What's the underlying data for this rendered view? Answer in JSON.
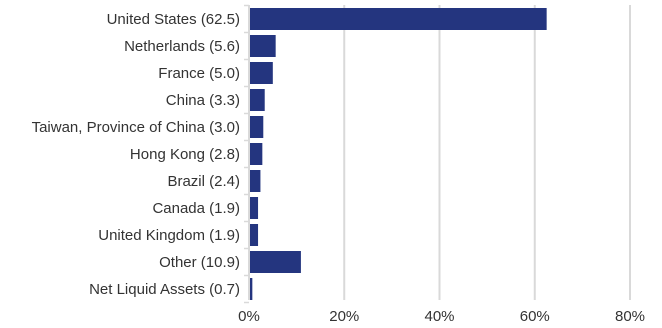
{
  "chart_data": {
    "type": "bar",
    "orientation": "horizontal",
    "categories": [
      "United States (62.5)",
      "Netherlands (5.6)",
      "France (5.0)",
      "China (3.3)",
      "Taiwan, Province of China (3.0)",
      "Hong Kong (2.8)",
      "Brazil (2.4)",
      "Canada (1.9)",
      "United Kingdom (1.9)",
      "Other (10.9)",
      "Net Liquid Assets (0.7)"
    ],
    "values": [
      62.5,
      5.6,
      5.0,
      3.3,
      3.0,
      2.8,
      2.4,
      1.9,
      1.9,
      10.9,
      0.7
    ],
    "x_ticks": [
      0,
      20,
      40,
      60,
      80
    ],
    "x_tick_labels": [
      "0%",
      "20%",
      "40%",
      "60%",
      "80%"
    ],
    "xlim": [
      0,
      80
    ],
    "grid": true,
    "legend": "none",
    "bar_color": "#24357f",
    "grid_color": "#d9d9d9",
    "text_color": "#333333",
    "title": "",
    "xlabel": "",
    "ylabel": ""
  }
}
